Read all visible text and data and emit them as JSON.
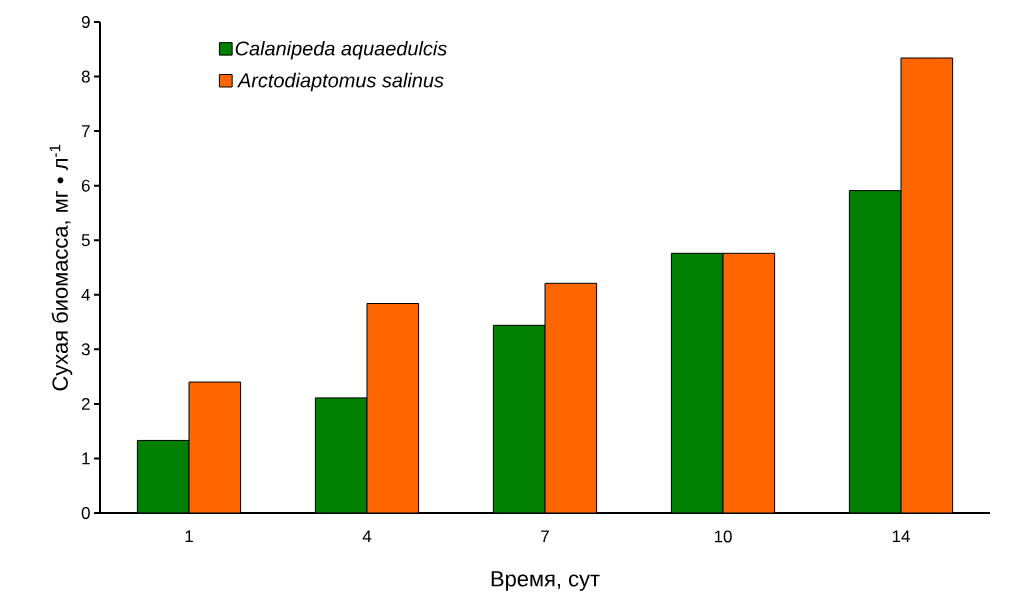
{
  "chart_data": {
    "type": "bar",
    "xlabel": "Время, сут",
    "ylabel": "Сухая биомасса, мг • л$^{-1}$",
    "categories": [
      "1",
      "4",
      "7",
      "10",
      "14"
    ],
    "series": [
      {
        "name": "Calanipeda aquaedulcis",
        "color": "#007f00",
        "values": [
          1.33,
          2.11,
          3.44,
          4.76,
          5.91
        ]
      },
      {
        "name": "Arctodiaptomus salinus",
        "color": "#ff6600",
        "values": [
          2.4,
          3.84,
          4.21,
          4.76,
          8.34
        ]
      }
    ],
    "ylim": [
      0,
      9
    ],
    "yticks": [
      0,
      1,
      2,
      3,
      4,
      5,
      6,
      7,
      8,
      9
    ],
    "grid": false,
    "legend": "top left"
  }
}
